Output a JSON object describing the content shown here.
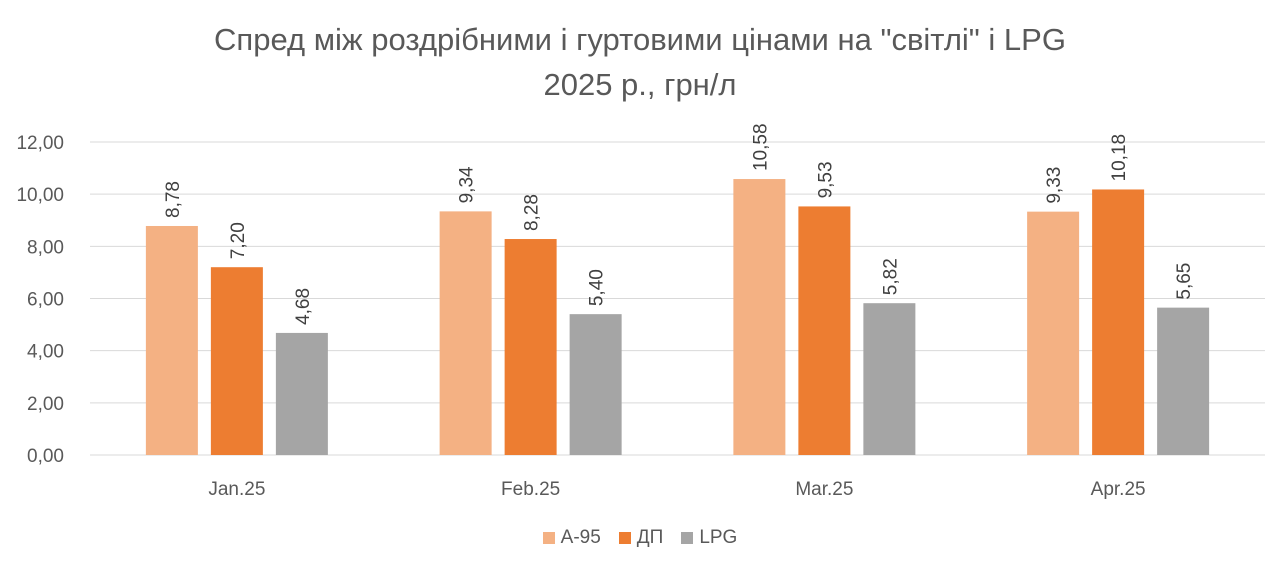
{
  "chart_data": {
    "type": "bar",
    "title": "Спред між роздрібними і гуртовими цінами на \"світлі\" і LPG",
    "subtitle": "2025 р., грн/л",
    "categories": [
      "Jan.25",
      "Feb.25",
      "Mar.25",
      "Apr.25"
    ],
    "series": [
      {
        "name": "А-95",
        "color": "#F4B183",
        "values": [
          8.78,
          9.34,
          10.58,
          9.33
        ],
        "labels": [
          "8,78",
          "9,34",
          "10,58",
          "9,33"
        ]
      },
      {
        "name": "ДП",
        "color": "#ED7D31",
        "values": [
          7.2,
          8.28,
          9.53,
          10.18
        ],
        "labels": [
          "7,20",
          "8,28",
          "9,53",
          "10,18"
        ]
      },
      {
        "name": "LPG",
        "color": "#A5A5A5",
        "values": [
          4.68,
          5.4,
          5.82,
          5.65
        ],
        "labels": [
          "4,68",
          "5,40",
          "5,82",
          "5,65"
        ]
      }
    ],
    "ylim": [
      0,
      12
    ],
    "yticks": [
      {
        "value": 0,
        "label": "0,00"
      },
      {
        "value": 2,
        "label": "2,00"
      },
      {
        "value": 4,
        "label": "4,00"
      },
      {
        "value": 6,
        "label": "6,00"
      },
      {
        "value": 8,
        "label": "8,00"
      },
      {
        "value": 10,
        "label": "10,00"
      },
      {
        "value": 12,
        "label": "12,00"
      }
    ],
    "grid": true,
    "legend_position": "bottom",
    "gridline_color": "#D9D9D9"
  }
}
